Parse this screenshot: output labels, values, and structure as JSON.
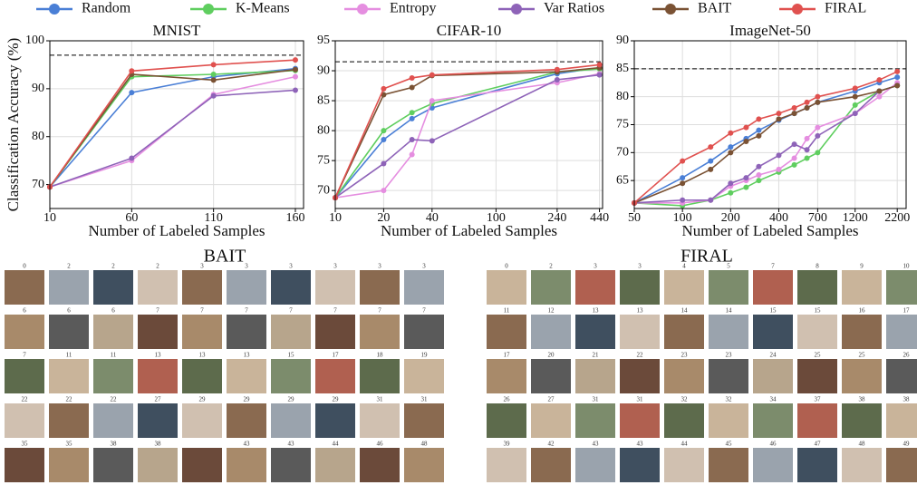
{
  "chart_data": [
    {
      "type": "line",
      "title": "MNIST",
      "xlabel": "Number of Labeled Samples",
      "ylabel": "Classification Accuracy (%)",
      "x": [
        10,
        60,
        110,
        160
      ],
      "xlim": [
        10,
        165
      ],
      "xticks": [
        10,
        60,
        110,
        160
      ],
      "xscale": "linear",
      "ylim": [
        65,
        100
      ],
      "yticks": [
        70,
        80,
        90,
        100
      ],
      "hline": 97,
      "grid": true,
      "series": [
        {
          "name": "Random",
          "color": "#4a7fd6",
          "values": [
            69.5,
            89.2,
            92.5,
            94.2
          ]
        },
        {
          "name": "K-Means",
          "color": "#5fce5f",
          "values": [
            69.5,
            92.5,
            93,
            93.8
          ]
        },
        {
          "name": "Entropy",
          "color": "#e58ee0",
          "values": [
            69.5,
            75,
            88.8,
            92.5
          ]
        },
        {
          "name": "Var Ratios",
          "color": "#8e63b8",
          "values": [
            69.5,
            75.5,
            88.5,
            89.7
          ]
        },
        {
          "name": "BAIT",
          "color": "#7a5234",
          "values": [
            69.5,
            93,
            91.8,
            94
          ]
        },
        {
          "name": "FIRAL",
          "color": "#e0514f",
          "values": [
            69.5,
            93.7,
            95,
            96
          ]
        }
      ]
    },
    {
      "type": "line",
      "title": "CIFAR-10",
      "xlabel": "Number of Labeled Samples",
      "x": [
        10,
        20,
        30,
        40,
        240,
        440
      ],
      "xlim": [
        10,
        460
      ],
      "xticks": [
        10,
        20,
        40,
        100,
        240,
        440
      ],
      "xscale": "log",
      "ylim": [
        67,
        95
      ],
      "yticks": [
        70,
        75,
        80,
        85,
        90,
        95
      ],
      "hline": 91.5,
      "grid": true,
      "series": [
        {
          "name": "Random",
          "color": "#4a7fd6",
          "values": [
            68.8,
            78.5,
            82,
            83.8,
            89.5,
            90.5
          ]
        },
        {
          "name": "K-Means",
          "color": "#5fce5f",
          "values": [
            68.8,
            80,
            83,
            84.5,
            89.8,
            90.3
          ]
        },
        {
          "name": "Entropy",
          "color": "#e58ee0",
          "values": [
            68.8,
            70,
            76,
            85,
            88,
            89.5
          ]
        },
        {
          "name": "Var Ratios",
          "color": "#8e63b8",
          "values": [
            68.8,
            74.5,
            78.5,
            78.3,
            88.5,
            89.3
          ]
        },
        {
          "name": "BAIT",
          "color": "#7a5234",
          "values": [
            68.8,
            86,
            87.2,
            89.2,
            89.8,
            90.5
          ]
        },
        {
          "name": "FIRAL",
          "color": "#e0514f",
          "values": [
            68.8,
            87,
            88.8,
            89.3,
            90.2,
            91
          ]
        }
      ]
    },
    {
      "type": "line",
      "title": "ImageNet-50",
      "xlabel": "Number of Labeled Samples",
      "x": [
        50,
        100,
        150,
        200,
        250,
        300,
        400,
        500,
        600,
        700,
        1200,
        1700,
        2200
      ],
      "xlim": [
        50,
        2500
      ],
      "xticks": [
        50,
        100,
        200,
        400,
        700,
        1200,
        2200
      ],
      "xscale": "log",
      "ylim": [
        60,
        90
      ],
      "yticks": [
        65,
        70,
        75,
        80,
        85,
        90
      ],
      "hline": 85,
      "grid": true,
      "series": [
        {
          "name": "Random",
          "color": "#4a7fd6",
          "values": [
            61,
            65.5,
            68.5,
            71,
            72.5,
            74,
            75.8,
            77,
            78,
            79,
            81,
            82.5,
            83.5
          ]
        },
        {
          "name": "K-Means",
          "color": "#5fce5f",
          "values": [
            61,
            60.5,
            61.5,
            62.8,
            63.8,
            65,
            66.5,
            67.8,
            69,
            70,
            78.5,
            81,
            82
          ]
        },
        {
          "name": "Entropy",
          "color": "#e58ee0",
          "values": [
            61,
            61,
            61.5,
            64,
            65,
            66,
            67,
            69,
            72.5,
            74.5,
            77,
            80,
            82.5
          ]
        },
        {
          "name": "Var Ratios",
          "color": "#8e63b8",
          "values": [
            61,
            61.5,
            61.5,
            64.5,
            65.5,
            67.5,
            69.5,
            71.5,
            70.5,
            73,
            77,
            81,
            82
          ]
        },
        {
          "name": "BAIT",
          "color": "#7a5234",
          "values": [
            61,
            64.5,
            67,
            70,
            72,
            73,
            76,
            77,
            78,
            79,
            80,
            81,
            82
          ]
        },
        {
          "name": "FIRAL",
          "color": "#e0514f",
          "values": [
            61,
            68.5,
            71,
            73.5,
            74.5,
            76,
            77,
            78,
            79,
            80,
            81.5,
            83,
            84.5
          ]
        }
      ]
    }
  ],
  "grids": [
    {
      "title": "BAIT",
      "labels": [
        [
          0,
          2,
          2,
          2,
          3,
          3,
          3,
          3,
          3,
          3
        ],
        [
          6,
          6,
          6,
          7,
          7,
          7,
          7,
          7,
          7,
          7
        ],
        [
          7,
          11,
          11,
          13,
          13,
          13,
          15,
          17,
          18,
          19
        ],
        [
          22,
          22,
          22,
          27,
          29,
          29,
          29,
          29,
          31,
          31
        ],
        [
          35,
          35,
          38,
          38,
          null,
          43,
          43,
          44,
          46,
          48
        ]
      ]
    },
    {
      "title": "FIRAL",
      "labels": [
        [
          0,
          2,
          3,
          3,
          4,
          5,
          7,
          8,
          9,
          10
        ],
        [
          11,
          12,
          13,
          13,
          14,
          14,
          15,
          15,
          16,
          17
        ],
        [
          17,
          20,
          21,
          22,
          23,
          23,
          24,
          25,
          25,
          26
        ],
        [
          26,
          27,
          31,
          31,
          32,
          32,
          34,
          37,
          38,
          38
        ],
        [
          39,
          42,
          43,
          43,
          44,
          45,
          46,
          47,
          48,
          49
        ]
      ]
    }
  ]
}
